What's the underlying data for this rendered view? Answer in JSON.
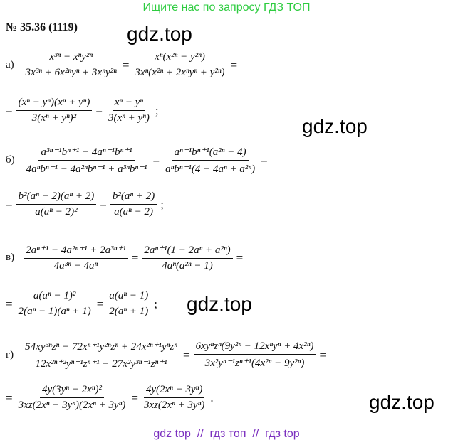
{
  "header": {
    "banner": "Ищите нас по запросу ГДЗ ТОП",
    "number": "№ 35.36 (1119)"
  },
  "watermarks": [
    "gdz.top",
    "gdz.top",
    "gdz.top",
    "gdz.top"
  ],
  "items": [
    {
      "label": "а)",
      "lines": [
        [
          {
            "num": "x³ⁿ − xⁿy²ⁿ",
            "den": "3x³ⁿ + 6x²ⁿyⁿ + 3xⁿy²ⁿ"
          },
          "=",
          {
            "num": "xⁿ(x²ⁿ − y²ⁿ)",
            "den": "3xⁿ(x²ⁿ + 2xⁿyⁿ + y²ⁿ)"
          },
          "="
        ],
        [
          "=",
          {
            "num": "(xⁿ − yⁿ)(xⁿ + yⁿ)",
            "den": "3(xⁿ + yⁿ)²"
          },
          "=",
          {
            "num": "xⁿ − yⁿ",
            "den": "3(xⁿ + yⁿ)"
          },
          ";"
        ]
      ]
    },
    {
      "label": "б)",
      "lines": [
        [
          {
            "num": "a³ⁿ⁻¹bⁿ⁺¹ − 4aⁿ⁻¹bⁿ⁺¹",
            "den": "4aⁿbⁿ⁻¹ − 4a²ⁿbⁿ⁻¹ + a³ⁿbⁿ⁻¹"
          },
          "=",
          {
            "num": "aⁿ⁻¹bⁿ⁺¹(a²ⁿ − 4)",
            "den": "aⁿbⁿ⁻¹(4 − 4aⁿ + a²ⁿ)"
          },
          "="
        ],
        [
          "=",
          {
            "num": "b²(aⁿ − 2)(aⁿ + 2)",
            "den": "a(aⁿ − 2)²"
          },
          "=",
          {
            "num": "b²(aⁿ + 2)",
            "den": "a(aⁿ − 2)"
          },
          ";"
        ]
      ]
    },
    {
      "label": "в)",
      "lines": [
        [
          {
            "num": "2aⁿ⁺¹ − 4a²ⁿ⁺¹ + 2a³ⁿ⁺¹",
            "den": "4a³ⁿ − 4aⁿ"
          },
          "=",
          {
            "num": "2aⁿ⁺¹(1 − 2aⁿ + a²ⁿ)",
            "den": "4aⁿ(a²ⁿ − 1)"
          },
          "="
        ],
        [
          "=",
          {
            "num": "a(aⁿ − 1)²",
            "den": "2(aⁿ − 1)(aⁿ + 1)"
          },
          "=",
          {
            "num": "a(aⁿ − 1)",
            "den": "2(aⁿ + 1)"
          },
          ";"
        ]
      ]
    },
    {
      "label": "г)",
      "lines": [
        [
          {
            "num": "54xy³ⁿzⁿ − 72xⁿ⁺¹y²ⁿzⁿ + 24x²ⁿ⁺¹yⁿzⁿ",
            "den": "12x²ⁿ⁺²yⁿ⁻¹zⁿ⁺¹ − 27x²y³ⁿ⁻¹zⁿ⁺¹"
          },
          "=",
          {
            "num": "6xyⁿzⁿ(9y²ⁿ − 12xⁿyⁿ + 4x²ⁿ)",
            "den": "3x²yⁿ⁻¹zⁿ⁺¹(4x²ⁿ − 9y²ⁿ)"
          },
          "="
        ],
        [
          "=",
          {
            "num": "4y(3yⁿ − 2xⁿ)²",
            "den": "3xz(2xⁿ − 3yⁿ)(2xⁿ + 3yⁿ)"
          },
          "=",
          {
            "num": "4y(2xⁿ − 3yⁿ)",
            "den": "3xz(2xⁿ + 3yⁿ)"
          },
          "."
        ]
      ]
    }
  ],
  "footer": "gdz top  //  гдз топ  //  гдз top"
}
